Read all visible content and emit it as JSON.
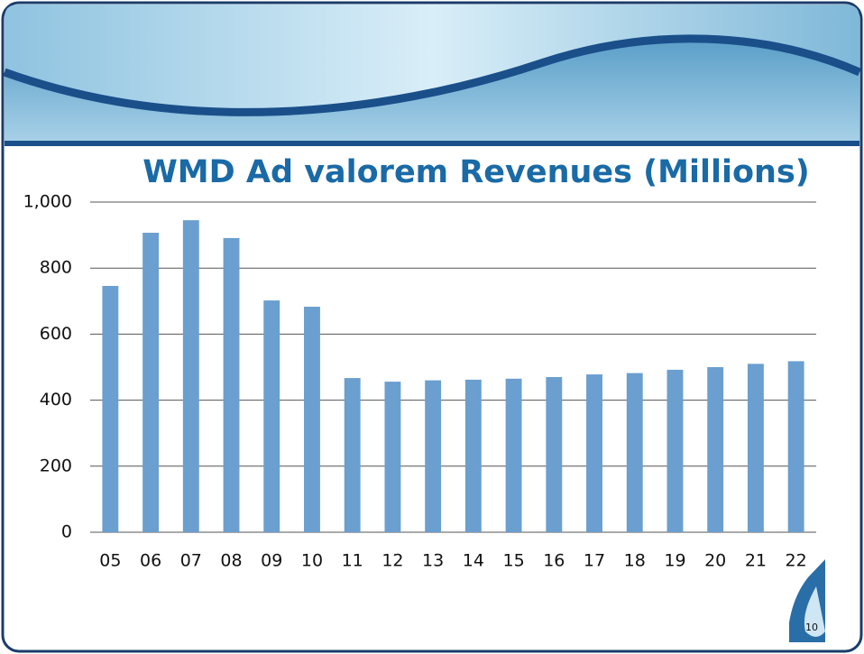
{
  "chart_data": {
    "type": "bar",
    "title": "WMD Ad valorem Revenues (Millions)",
    "categories": [
      "05",
      "06",
      "07",
      "08",
      "09",
      "10",
      "11",
      "12",
      "13",
      "14",
      "15",
      "16",
      "17",
      "18",
      "19",
      "20",
      "21",
      "22"
    ],
    "values": [
      746,
      907,
      945,
      891,
      702,
      683,
      467,
      456,
      460,
      462,
      465,
      470,
      478,
      482,
      492,
      500,
      510,
      518
    ],
    "color": "#6a9fcf",
    "ylim": [
      0,
      1000
    ],
    "yticks": [
      0,
      200,
      400,
      600,
      800,
      {
        "value": 1000,
        "label": "1,000"
      }
    ],
    "grid": true
  },
  "slide": {
    "page_number": "10"
  }
}
